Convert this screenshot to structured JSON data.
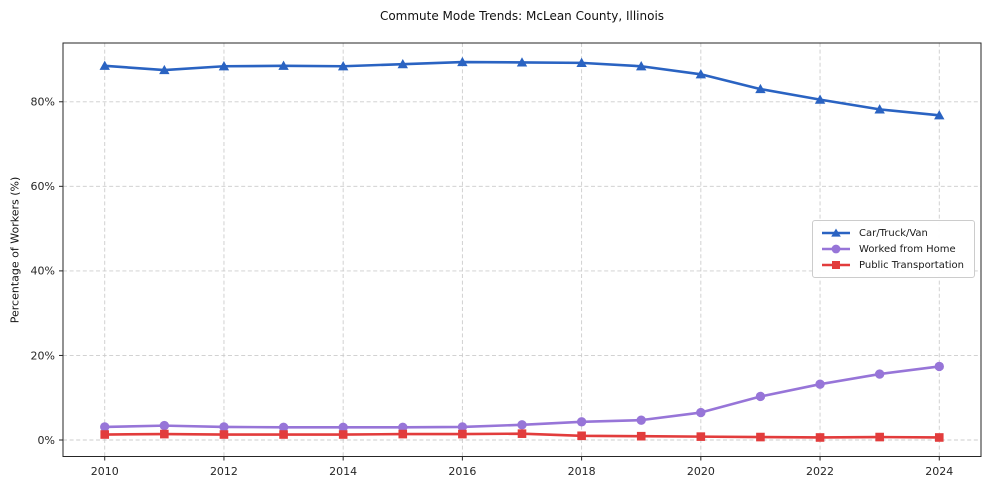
{
  "chart_data": {
    "type": "line",
    "title": "Commute Mode Trends: McLean County, Illinois",
    "xlabel": "",
    "ylabel": "Percentage of Workers (%)",
    "x": [
      2010,
      2011,
      2012,
      2013,
      2014,
      2015,
      2016,
      2017,
      2018,
      2019,
      2020,
      2021,
      2022,
      2023,
      2024
    ],
    "series": [
      {
        "name": "Car/Truck/Van",
        "color": "#2a63c2",
        "marker": "triangle",
        "values": [
          88.5,
          87.5,
          88.4,
          88.5,
          88.4,
          88.9,
          89.4,
          89.3,
          89.2,
          88.4,
          86.5,
          83.0,
          80.5,
          78.2,
          76.8
        ]
      },
      {
        "name": "Worked from Home",
        "color": "#9775d8",
        "marker": "circle",
        "values": [
          3.1,
          3.4,
          3.1,
          3.0,
          3.0,
          3.0,
          3.1,
          3.6,
          4.3,
          4.7,
          6.5,
          10.3,
          13.2,
          15.6,
          17.4
        ]
      },
      {
        "name": "Public Transportation",
        "color": "#e23c3c",
        "marker": "square",
        "values": [
          1.3,
          1.4,
          1.3,
          1.3,
          1.3,
          1.4,
          1.4,
          1.5,
          1.0,
          0.9,
          0.8,
          0.7,
          0.6,
          0.7,
          0.6
        ]
      }
    ],
    "xticks": [
      2010,
      2012,
      2014,
      2016,
      2018,
      2020,
      2022,
      2024
    ],
    "ytick_values": [
      0,
      20,
      40,
      60,
      80
    ],
    "ytick_labels": [
      "0%",
      "20%",
      "40%",
      "60%",
      "80%"
    ],
    "xlim": [
      2009.3,
      2024.7
    ],
    "ylim": [
      -3.9,
      93.9
    ],
    "grid": true,
    "legend_position": "center-right",
    "grid_color": "#cccccc",
    "axis_color": "#262626",
    "tick_label_color": "#262626"
  }
}
